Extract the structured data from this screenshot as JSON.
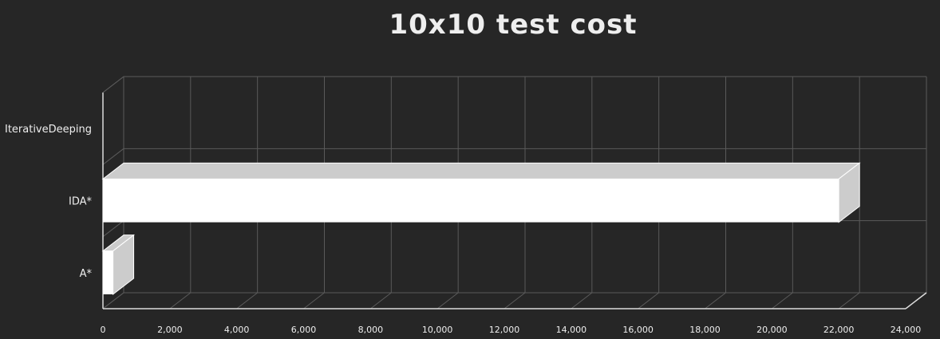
{
  "chart_data": {
    "type": "bar",
    "orientation": "horizontal",
    "title": "10x10 test cost",
    "xlabel": "",
    "ylabel": "",
    "categories": [
      "IterativeDeeping",
      "IDA*",
      "A*"
    ],
    "values": [
      0,
      22000,
      300
    ],
    "xlim": [
      0,
      24000
    ],
    "xticks": [
      0,
      2000,
      4000,
      6000,
      8000,
      10000,
      12000,
      14000,
      16000,
      18000,
      20000,
      22000,
      24000
    ],
    "xtick_labels": [
      "0",
      "2,000",
      "4,000",
      "6,000",
      "8,000",
      "10,000",
      "12,000",
      "14,000",
      "16,000",
      "18,000",
      "20,000",
      "22,000",
      "24,000"
    ],
    "grid": true,
    "legend": "none",
    "style": "3d",
    "colors": {
      "background": "#262626",
      "bar_front": "#ffffff",
      "bar_side": "#cccccc",
      "grid": "#5a5a5a",
      "axis": "#dcdcdc",
      "text": "#eeeeee"
    }
  }
}
